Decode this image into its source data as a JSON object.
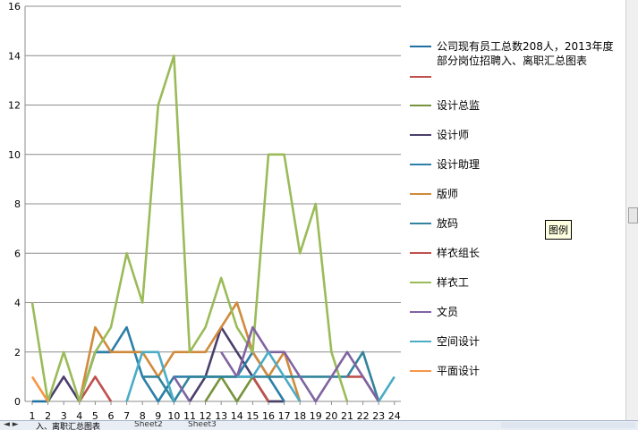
{
  "chart_data": {
    "type": "line",
    "x": [
      "1",
      "2",
      "3",
      "4",
      "5",
      "6",
      "7",
      "8",
      "9",
      "10",
      "11",
      "12",
      "13",
      "14",
      "15",
      "16",
      "17",
      "18",
      "19",
      "20",
      "21",
      "22",
      "23",
      "24"
    ],
    "ylim": [
      0,
      16
    ],
    "yticks": [
      0,
      2,
      4,
      6,
      8,
      10,
      12,
      14,
      16
    ],
    "grid": "horizontal",
    "legend_position": "right",
    "series": [
      {
        "name": "公司现有员工总数208人，2013年度部分岗位招聘入、离职汇总图表",
        "color": "#1f6fa3",
        "values": [
          0,
          0,
          null,
          null,
          null,
          null,
          null,
          null,
          null,
          null,
          null,
          null,
          null,
          null,
          null,
          null,
          null,
          null,
          null,
          null,
          null,
          null,
          null,
          null
        ]
      },
      {
        "name": "",
        "color": "#c0504d",
        "values": [
          null,
          null,
          null,
          0,
          1,
          0,
          null,
          null,
          null,
          null,
          null,
          null,
          null,
          null,
          null,
          null,
          null,
          null,
          null,
          null,
          null,
          null,
          null,
          null
        ]
      },
      {
        "name": "设计总监",
        "color": "#77933c",
        "values": [
          null,
          null,
          null,
          null,
          null,
          null,
          null,
          null,
          null,
          null,
          null,
          0,
          1,
          0,
          1,
          0,
          0,
          null,
          null,
          null,
          null,
          null,
          null,
          null
        ]
      },
      {
        "name": "设计师",
        "color": "#4a3f6b",
        "values": [
          null,
          0,
          1,
          0,
          2,
          2,
          null,
          null,
          null,
          null,
          0,
          1,
          3,
          2,
          1,
          0,
          0,
          null,
          null,
          null,
          null,
          null,
          null,
          null
        ]
      },
      {
        "name": "设计助理",
        "color": "#2c7fa8",
        "values": [
          null,
          null,
          null,
          0,
          2,
          2,
          3,
          1,
          0,
          1,
          1,
          1,
          1,
          1,
          2,
          1,
          0,
          null,
          null,
          null,
          null,
          null,
          null,
          null
        ]
      },
      {
        "name": "版师",
        "color": "#d08a3b",
        "values": [
          null,
          null,
          null,
          0,
          3,
          2,
          2,
          2,
          1,
          2,
          2,
          2,
          3,
          4,
          2,
          1,
          2,
          0,
          null,
          null,
          null,
          null,
          null,
          null
        ]
      },
      {
        "name": "放码",
        "color": "#31849b",
        "values": [
          null,
          null,
          null,
          null,
          null,
          null,
          null,
          1,
          1,
          0,
          1,
          1,
          1,
          1,
          1,
          1,
          1,
          1,
          1,
          1,
          1,
          2,
          0,
          null
        ]
      },
      {
        "name": "样衣组长",
        "color": "#c0504d",
        "values": [
          null,
          null,
          null,
          null,
          null,
          null,
          null,
          null,
          null,
          null,
          null,
          null,
          null,
          null,
          1,
          0,
          null,
          null,
          null,
          null,
          1,
          1,
          0,
          null
        ]
      },
      {
        "name": "样衣工",
        "color": "#9bbb59",
        "values": [
          4,
          0,
          2,
          0,
          2,
          3,
          6,
          4,
          12,
          14,
          2,
          3,
          5,
          3,
          2,
          10,
          10,
          6,
          8,
          2,
          0,
          null,
          null,
          null
        ]
      },
      {
        "name": "文员",
        "color": "#8064a2",
        "values": [
          null,
          null,
          null,
          null,
          null,
          null,
          null,
          null,
          null,
          1,
          0,
          null,
          2,
          1,
          3,
          2,
          2,
          1,
          0,
          1,
          2,
          1,
          0,
          null
        ]
      },
      {
        "name": "空间设计",
        "color": "#4bacc6",
        "values": [
          null,
          null,
          null,
          null,
          null,
          null,
          0,
          2,
          2,
          0,
          null,
          null,
          null,
          1,
          1,
          2,
          1,
          0,
          null,
          null,
          null,
          null,
          0,
          1
        ]
      },
      {
        "name": "平面设计",
        "color": "#f79646",
        "values": [
          1,
          0,
          null,
          null,
          null,
          null,
          null,
          null,
          null,
          null,
          null,
          null,
          null,
          null,
          null,
          null,
          null,
          null,
          null,
          null,
          null,
          null,
          null,
          null
        ]
      }
    ]
  },
  "tooltip": {
    "text": "图例"
  },
  "sheet_tabs": {
    "nav": "◄ ►",
    "active": "入、离职汇总图表",
    "tab2": "Sheet2",
    "tab3": "Sheet3"
  }
}
